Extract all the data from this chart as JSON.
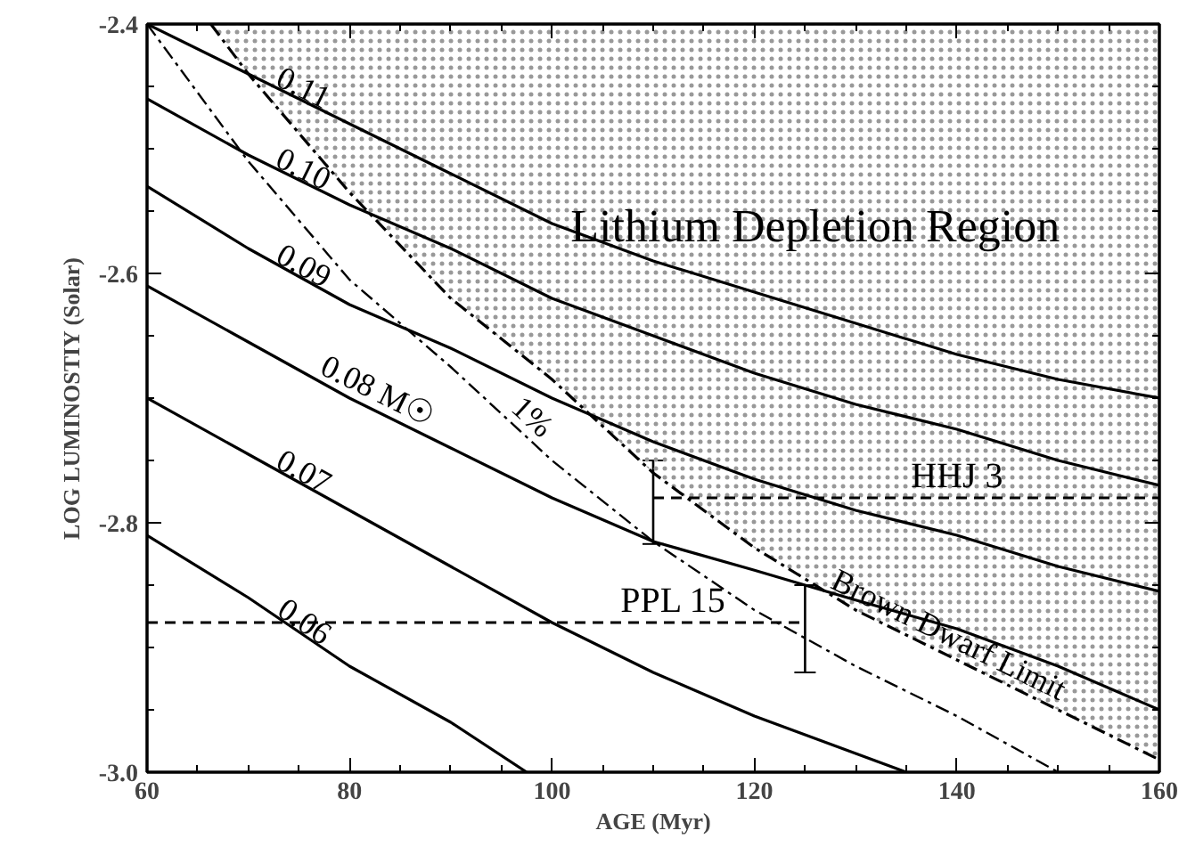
{
  "chart_data": {
    "type": "line",
    "xlabel": "AGE (Myr)",
    "ylabel": "LOG LUMINOSTIY (Solar)",
    "xlim": [
      60,
      160
    ],
    "ylim": [
      -3.0,
      -2.4
    ],
    "xticks": [
      60,
      80,
      100,
      120,
      140,
      160
    ],
    "yticks": [
      {
        "value": -3.0,
        "label": "-3.0"
      },
      {
        "value": -2.8,
        "label": "-2.8"
      },
      {
        "value": -2.6,
        "label": "-2.6"
      },
      {
        "value": -2.4,
        "label": "-2.4"
      }
    ],
    "grid": false,
    "annotations": [
      "Lithium Depletion Region"
    ],
    "series": [
      {
        "name": "0.11",
        "color": "#000000",
        "line_style": "solid",
        "x": [
          60,
          70,
          80,
          90,
          100,
          110,
          120,
          130,
          140,
          150,
          160
        ],
        "values": [
          -2.4,
          -2.44,
          -2.48,
          -2.52,
          -2.56,
          -2.59,
          -2.615,
          -2.64,
          -2.665,
          -2.685,
          -2.7
        ]
      },
      {
        "name": "0.10",
        "color": "#000000",
        "line_style": "solid",
        "x": [
          60,
          70,
          80,
          90,
          100,
          110,
          120,
          130,
          140,
          150,
          160
        ],
        "values": [
          -2.46,
          -2.505,
          -2.545,
          -2.58,
          -2.62,
          -2.65,
          -2.68,
          -2.705,
          -2.725,
          -2.75,
          -2.77
        ]
      },
      {
        "name": "0.09",
        "color": "#000000",
        "line_style": "solid",
        "x": [
          60,
          70,
          80,
          90,
          100,
          110,
          120,
          130,
          140,
          150,
          160
        ],
        "values": [
          -2.53,
          -2.58,
          -2.625,
          -2.66,
          -2.7,
          -2.735,
          -2.765,
          -2.79,
          -2.81,
          -2.835,
          -2.855
        ]
      },
      {
        "name": "0.08 M☉",
        "color": "#000000",
        "line_style": "solid",
        "x": [
          60,
          70,
          80,
          90,
          100,
          110,
          120,
          130,
          140,
          150,
          160
        ],
        "values": [
          -2.61,
          -2.655,
          -2.7,
          -2.74,
          -2.78,
          -2.815,
          -2.838,
          -2.862,
          -2.885,
          -2.915,
          -2.95
        ]
      },
      {
        "name": "0.07",
        "color": "#000000",
        "line_style": "solid",
        "x": [
          60,
          70,
          80,
          90,
          100,
          110,
          120,
          130,
          135
        ],
        "values": [
          -2.7,
          -2.745,
          -2.79,
          -2.835,
          -2.88,
          -2.92,
          -2.955,
          -2.985,
          -3.0
        ]
      },
      {
        "name": "0.06",
        "color": "#000000",
        "line_style": "solid",
        "x": [
          60,
          70,
          80,
          90,
          97.5
        ],
        "values": [
          -2.81,
          -2.86,
          -2.915,
          -2.96,
          -3.0
        ]
      },
      {
        "name": "1%",
        "color": "#000000",
        "line_style": "dashdot",
        "x": [
          60,
          65,
          70,
          80,
          90,
          100,
          110,
          120,
          130,
          140,
          150
        ],
        "values": [
          -2.4,
          -2.455,
          -2.51,
          -2.605,
          -2.675,
          -2.75,
          -2.815,
          -2.87,
          -2.915,
          -2.955,
          -3.0
        ]
      },
      {
        "name": "Brown Dwarf Limit",
        "color": "#000000",
        "line_style": "dashdot",
        "x": [
          66.3,
          70,
          80,
          90,
          100,
          110,
          120,
          130,
          140,
          150,
          160
        ],
        "values": [
          -2.4,
          -2.44,
          -2.535,
          -2.62,
          -2.685,
          -2.76,
          -2.82,
          -2.87,
          -2.91,
          -2.95,
          -2.99
        ]
      },
      {
        "name": "HHJ 3",
        "color": "#000000",
        "line_style": "dashed",
        "x": [
          110,
          160
        ],
        "values": [
          -2.78,
          -2.78
        ],
        "errors": [
          [
            -2.817,
            -2.75
          ],
          null
        ]
      },
      {
        "name": "PPL 15",
        "color": "#000000",
        "line_style": "dashed",
        "x": [
          60,
          125
        ],
        "values": [
          -2.88,
          -2.88
        ],
        "errors": [
          null,
          [
            -2.92,
            -2.85
          ]
        ]
      }
    ]
  }
}
